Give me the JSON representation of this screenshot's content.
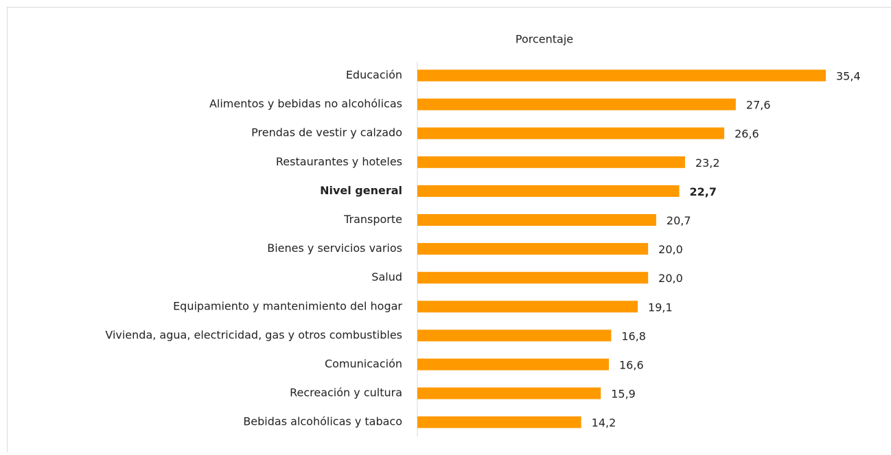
{
  "chart_data": {
    "type": "hbar",
    "title": "Porcentaje",
    "categories": [
      "Educación",
      "Alimentos y bebidas no alcohólicas",
      "Prendas de vestir y calzado",
      "Restaurantes y hoteles",
      "Nivel general",
      "Transporte",
      "Bienes y servicios varios",
      "Salud",
      "Equipamiento y mantenimiento del hogar",
      "Vivienda, agua, electricidad, gas y otros combustibles",
      "Comunicación",
      "Recreación y cultura",
      "Bebidas alcohólicas y tabaco"
    ],
    "values": [
      35.4,
      27.6,
      26.6,
      23.2,
      22.7,
      20.7,
      20.0,
      20.0,
      19.1,
      16.8,
      16.6,
      15.9,
      14.2
    ],
    "value_labels": [
      "35,4",
      "27,6",
      "26,6",
      "23,2",
      "22,7",
      "20,7",
      "20,0",
      "20,0",
      "19,1",
      "16,8",
      "16,6",
      "15,9",
      "14,2"
    ],
    "color": "#ff9900",
    "highlight_index": 4
  }
}
